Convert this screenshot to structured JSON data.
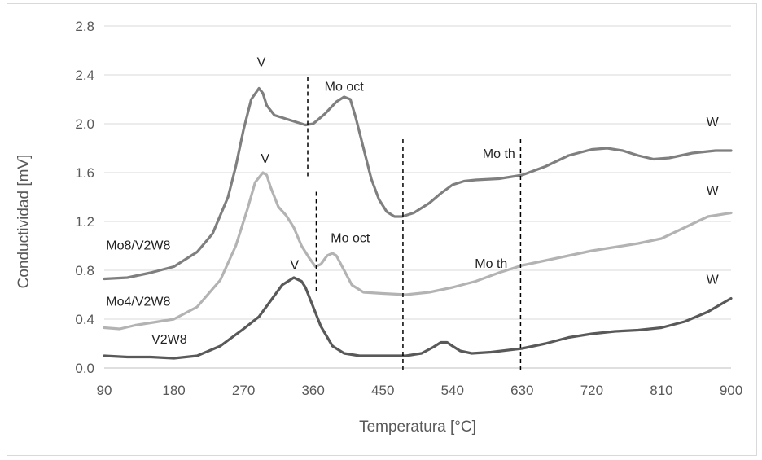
{
  "chart_data": {
    "type": "line",
    "xlabel": "Temperatura [°C]",
    "ylabel": "Conductividad [mV]",
    "xlim": [
      90,
      900
    ],
    "ylim": [
      0,
      2.8
    ],
    "xticks": [
      90,
      180,
      270,
      360,
      450,
      540,
      630,
      720,
      810,
      900
    ],
    "xtick_labels": [
      "90",
      "180",
      "270",
      "360",
      "450",
      "540",
      "630",
      "720",
      "810",
      "900"
    ],
    "yticks": [
      0,
      0.4,
      0.8,
      1.2,
      1.6,
      2.0,
      2.4,
      2.8
    ],
    "ytick_labels": [
      "0.0",
      "0.4",
      "0.8",
      "1.2",
      "1.6",
      "2.0",
      "2.4",
      "2.8"
    ],
    "grid": "horizontal",
    "colors": {
      "series1": "#7f7f7f",
      "series2": "#b3b3b3",
      "series3": "#595959",
      "grid": "#d9d9d9",
      "axis": "#bfbfbf",
      "marker_line": "#000000"
    },
    "series": [
      {
        "name": "Mo8/V2W8",
        "x": [
          90,
          120,
          150,
          180,
          210,
          230,
          250,
          260,
          270,
          280,
          290,
          295,
          300,
          310,
          320,
          335,
          350,
          360,
          375,
          390,
          400,
          408,
          415,
          425,
          435,
          445,
          455,
          465,
          475,
          490,
          510,
          525,
          540,
          555,
          570,
          600,
          630,
          660,
          690,
          720,
          740,
          760,
          780,
          800,
          820,
          850,
          880,
          900
        ],
        "y": [
          0.73,
          0.74,
          0.78,
          0.83,
          0.95,
          1.1,
          1.4,
          1.65,
          1.95,
          2.2,
          2.29,
          2.25,
          2.15,
          2.07,
          2.05,
          2.02,
          1.99,
          2.0,
          2.08,
          2.18,
          2.22,
          2.2,
          2.05,
          1.8,
          1.55,
          1.38,
          1.28,
          1.24,
          1.24,
          1.27,
          1.35,
          1.43,
          1.5,
          1.53,
          1.54,
          1.55,
          1.58,
          1.65,
          1.74,
          1.79,
          1.8,
          1.78,
          1.74,
          1.71,
          1.72,
          1.76,
          1.78,
          1.78
        ]
      },
      {
        "name": "Mo4/V2W8",
        "x": [
          90,
          110,
          130,
          150,
          180,
          210,
          240,
          260,
          275,
          285,
          295,
          300,
          305,
          315,
          325,
          335,
          345,
          355,
          363,
          370,
          378,
          385,
          390,
          400,
          410,
          425,
          450,
          480,
          510,
          540,
          570,
          600,
          630,
          660,
          690,
          720,
          750,
          780,
          810,
          840,
          870,
          900
        ],
        "y": [
          0.33,
          0.32,
          0.35,
          0.37,
          0.4,
          0.5,
          0.72,
          1.0,
          1.3,
          1.52,
          1.6,
          1.58,
          1.48,
          1.32,
          1.25,
          1.15,
          1.0,
          0.9,
          0.83,
          0.85,
          0.92,
          0.94,
          0.92,
          0.8,
          0.68,
          0.62,
          0.61,
          0.6,
          0.62,
          0.66,
          0.71,
          0.78,
          0.84,
          0.88,
          0.92,
          0.96,
          0.99,
          1.02,
          1.06,
          1.15,
          1.24,
          1.27
        ]
      },
      {
        "name": "V2W8",
        "x": [
          90,
          120,
          150,
          180,
          210,
          240,
          270,
          290,
          305,
          320,
          335,
          345,
          350,
          360,
          370,
          385,
          400,
          420,
          450,
          480,
          500,
          515,
          525,
          533,
          540,
          550,
          565,
          590,
          630,
          660,
          690,
          720,
          750,
          780,
          810,
          840,
          870,
          900
        ],
        "y": [
          0.1,
          0.09,
          0.09,
          0.08,
          0.1,
          0.18,
          0.32,
          0.42,
          0.55,
          0.68,
          0.74,
          0.71,
          0.66,
          0.5,
          0.34,
          0.18,
          0.12,
          0.1,
          0.1,
          0.1,
          0.12,
          0.17,
          0.21,
          0.21,
          0.18,
          0.14,
          0.12,
          0.13,
          0.16,
          0.2,
          0.25,
          0.28,
          0.3,
          0.31,
          0.33,
          0.38,
          0.46,
          0.57
        ]
      }
    ],
    "vlines": [
      {
        "x": 353,
        "y0": 1.57,
        "y1": 2.38
      },
      {
        "x": 364,
        "y0": 0.63,
        "y1": 1.46
      },
      {
        "x": 476,
        "y0": -0.02,
        "y1": 1.89
      },
      {
        "x": 628,
        "y0": -0.02,
        "y1": 1.89
      }
    ],
    "annotations": [
      {
        "text": "V",
        "x": 293,
        "y": 2.47
      },
      {
        "text": "Mo oct",
        "x": 400,
        "y": 2.27
      },
      {
        "text": "W",
        "x": 876,
        "y": 1.98
      },
      {
        "text": "Mo th",
        "x": 600,
        "y": 1.72
      },
      {
        "text": "V",
        "x": 298,
        "y": 1.68
      },
      {
        "text": "W",
        "x": 876,
        "y": 1.42
      },
      {
        "text": "Mo8/V2W8",
        "x": 134,
        "y": 0.97
      },
      {
        "text": "Mo oct",
        "x": 408,
        "y": 1.03
      },
      {
        "text": "Mo th",
        "x": 590,
        "y": 0.82
      },
      {
        "text": "V",
        "x": 336,
        "y": 0.81
      },
      {
        "text": "W",
        "x": 876,
        "y": 0.69
      },
      {
        "text": "Mo4/V2W8",
        "x": 134,
        "y": 0.51
      },
      {
        "text": "V2W8",
        "x": 174,
        "y": 0.2
      }
    ]
  }
}
